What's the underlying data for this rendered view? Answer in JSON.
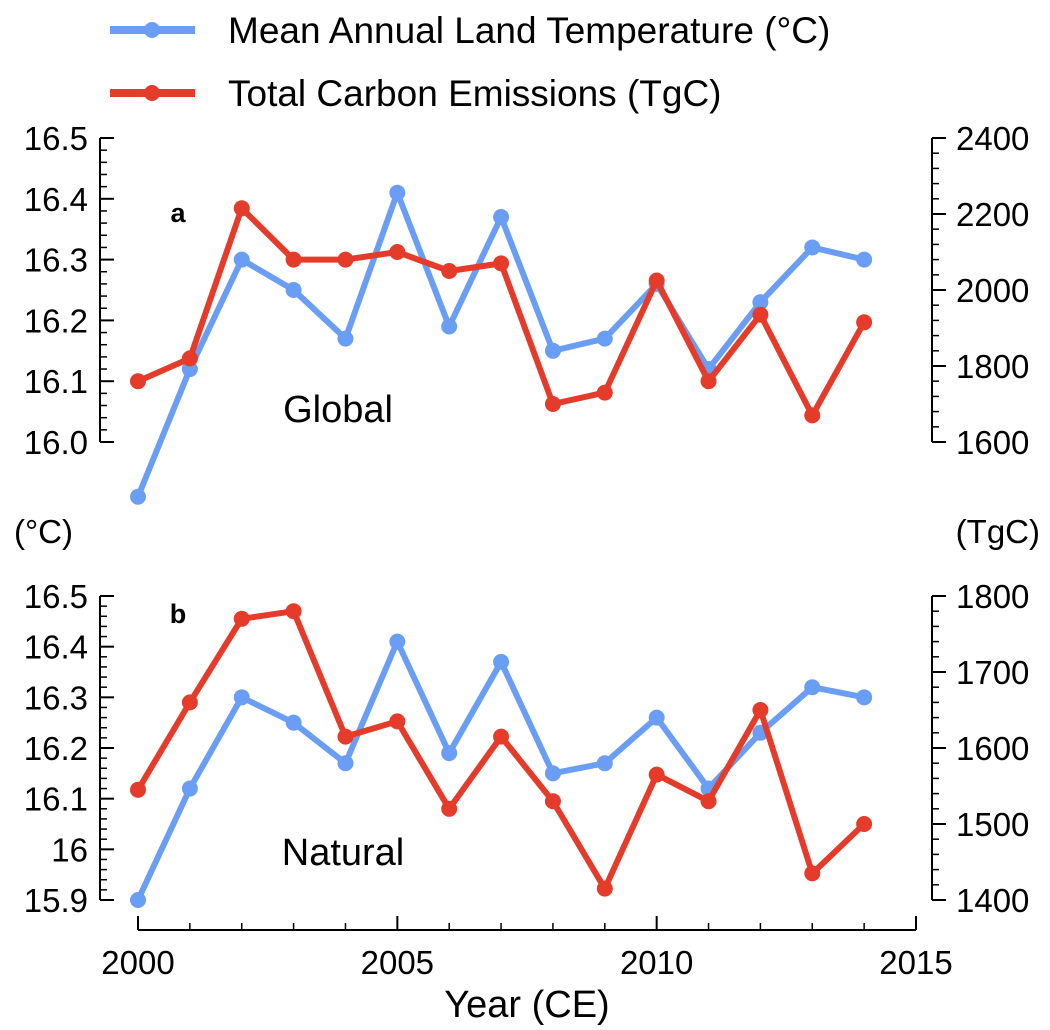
{
  "legend": [
    {
      "name": "Mean Annual Land Temperature (°C)",
      "color": "#6a9ef5"
    },
    {
      "name": "Total Carbon Emissions (TgC)",
      "color": "#e53b2b"
    }
  ],
  "left_unit": "(°C)",
  "right_unit": "(TgC)",
  "xaxis": {
    "title": "Year (CE)",
    "range": [
      2000,
      2015
    ],
    "ticks": [
      "2000",
      "2005",
      "2010",
      "2015"
    ]
  },
  "chart_data": [
    {
      "type": "line",
      "panel": "a",
      "label": "Global",
      "x": [
        2000,
        2001,
        2002,
        2003,
        2004,
        2005,
        2006,
        2007,
        2008,
        2009,
        2010,
        2011,
        2012,
        2013,
        2014
      ],
      "y_left_lim": [
        15.95,
        16.5
      ],
      "y_left_ticks": [
        "16.0",
        "16.1",
        "16.2",
        "16.3",
        "16.4",
        "16.5"
      ],
      "y_right_lim": [
        1600,
        2400
      ],
      "y_right_ticks": [
        "1600",
        "1800",
        "2000",
        "2200",
        "2400"
      ],
      "series": [
        {
          "name": "Mean Annual Land Temperature (°C)",
          "axis": "left",
          "color": "#6a9ef5",
          "values": [
            15.91,
            16.12,
            16.3,
            16.25,
            16.17,
            16.41,
            16.19,
            16.37,
            16.15,
            16.17,
            16.26,
            16.12,
            16.23,
            16.32,
            16.3
          ]
        },
        {
          "name": "Total Carbon Emissions (TgC)",
          "axis": "right",
          "color": "#e53b2b",
          "values": [
            1760,
            1820,
            2215,
            2080,
            2080,
            2100,
            2050,
            2070,
            1700,
            1730,
            2025,
            1760,
            1935,
            1670,
            1915
          ]
        }
      ]
    },
    {
      "type": "line",
      "panel": "b",
      "label": "Natural",
      "x": [
        2000,
        2001,
        2002,
        2003,
        2004,
        2005,
        2006,
        2007,
        2008,
        2009,
        2010,
        2011,
        2012,
        2013,
        2014
      ],
      "y_left_lim": [
        15.9,
        16.5
      ],
      "y_left_ticks": [
        "15.9",
        "16",
        "16.1",
        "16.2",
        "16.3",
        "16.4",
        "16.5"
      ],
      "y_right_lim": [
        1400,
        1800
      ],
      "y_right_ticks": [
        "1400",
        "1500",
        "1600",
        "1700",
        "1800"
      ],
      "series": [
        {
          "name": "Mean Annual Land Temperature (°C)",
          "axis": "left",
          "color": "#6a9ef5",
          "values": [
            15.9,
            16.12,
            16.3,
            16.25,
            16.17,
            16.41,
            16.19,
            16.37,
            16.15,
            16.17,
            16.26,
            16.12,
            16.23,
            16.32,
            16.3
          ]
        },
        {
          "name": "Total Carbon Emissions (TgC)",
          "axis": "right",
          "color": "#e53b2b",
          "values": [
            1545,
            1660,
            1770,
            1780,
            1615,
            1635,
            1520,
            1615,
            1530,
            1415,
            1565,
            1530,
            1650,
            1435,
            1500
          ]
        }
      ]
    }
  ]
}
